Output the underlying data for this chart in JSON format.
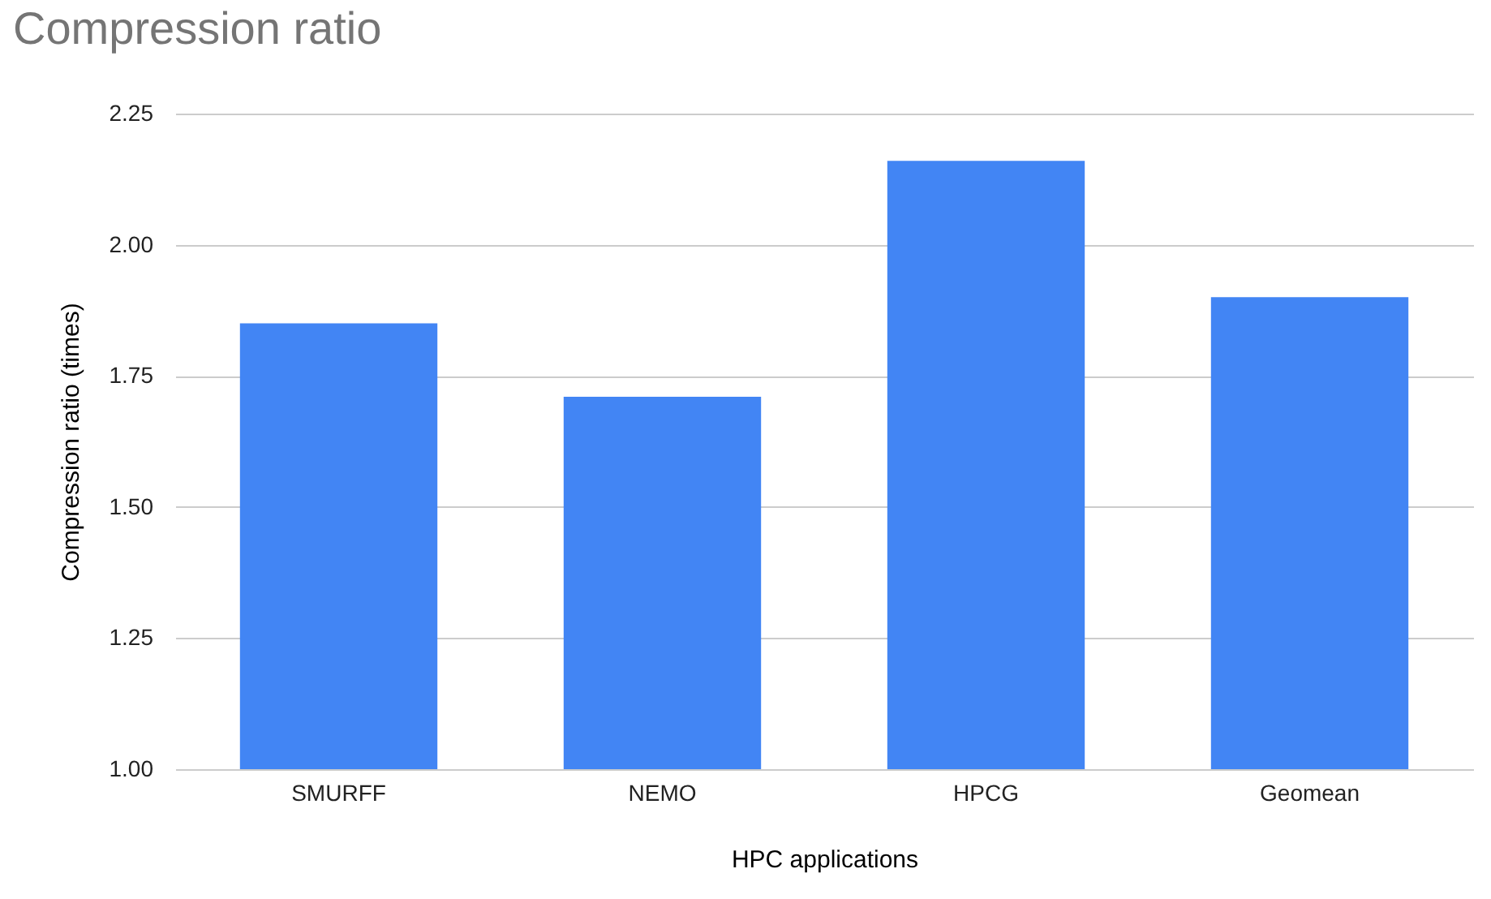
{
  "chart_data": {
    "type": "bar",
    "title": "Compression ratio",
    "xlabel": "HPC applications",
    "ylabel": "Compression ratio (times)",
    "categories": [
      "SMURFF",
      "NEMO",
      "HPCG",
      "Geomean"
    ],
    "values": [
      1.85,
      1.71,
      2.16,
      1.9
    ],
    "color": "#4285f4",
    "ylim": [
      1,
      2.25
    ],
    "yticks": [
      {
        "value": 1,
        "label": "1.00"
      },
      {
        "value": 1.25,
        "label": "1.25"
      },
      {
        "value": 1.5,
        "label": "1.50"
      },
      {
        "value": 1.75,
        "label": "1.75"
      },
      {
        "value": 2,
        "label": "2.00"
      },
      {
        "value": 2.25,
        "label": "2.25"
      }
    ],
    "grid": "y"
  }
}
